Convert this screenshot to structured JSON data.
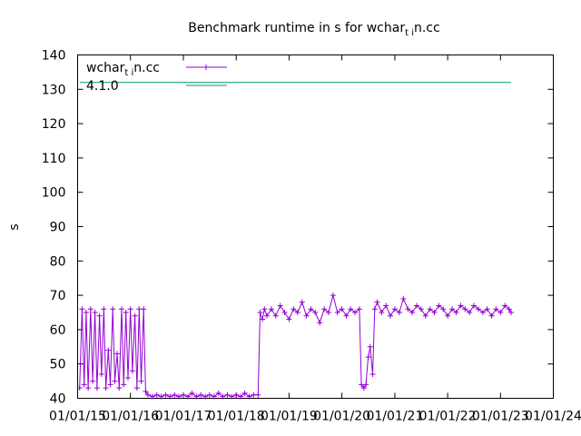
{
  "chart_data": {
    "type": "line",
    "title": {
      "before": "Benchmark runtime in s for wchar",
      "sub": "t i",
      "after": "n.cc"
    },
    "xlabel": "",
    "ylabel": "s",
    "ylim": [
      40,
      140
    ],
    "yticks": [
      40,
      50,
      60,
      70,
      80,
      90,
      100,
      110,
      120,
      130,
      140
    ],
    "xlim": [
      "2015-01-01",
      "2024-01-01"
    ],
    "xticks": [
      "01/01/15",
      "01/01/16",
      "01/01/17",
      "01/01/18",
      "01/01/19",
      "01/01/20",
      "01/01/21",
      "01/01/22",
      "01/01/23",
      "01/01/24"
    ],
    "grid": false,
    "legend_position": "top-left",
    "colors": {
      "series": "#9400d3",
      "reference": "#009e73",
      "frame": "#000000"
    },
    "series": [
      {
        "name": {
          "before": "wchar",
          "sub": "t i",
          "after": "n.cc"
        },
        "marker": "plus",
        "points": [
          [
            "2015-01-15",
            43
          ],
          [
            "2015-02-01",
            66
          ],
          [
            "2015-02-15",
            44
          ],
          [
            "2015-03-01",
            65
          ],
          [
            "2015-03-15",
            43
          ],
          [
            "2015-04-01",
            66
          ],
          [
            "2015-04-15",
            45
          ],
          [
            "2015-05-01",
            65
          ],
          [
            "2015-05-15",
            43
          ],
          [
            "2015-06-01",
            64
          ],
          [
            "2015-06-15",
            47
          ],
          [
            "2015-07-01",
            66
          ],
          [
            "2015-07-15",
            43
          ],
          [
            "2015-08-01",
            54
          ],
          [
            "2015-08-15",
            44
          ],
          [
            "2015-09-01",
            66
          ],
          [
            "2015-09-15",
            45
          ],
          [
            "2015-10-01",
            53
          ],
          [
            "2015-10-15",
            43
          ],
          [
            "2015-11-01",
            66
          ],
          [
            "2015-11-15",
            44
          ],
          [
            "2015-12-01",
            65
          ],
          [
            "2015-12-15",
            46
          ],
          [
            "2016-01-01",
            66
          ],
          [
            "2016-01-15",
            48
          ],
          [
            "2016-02-01",
            64
          ],
          [
            "2016-02-15",
            43
          ],
          [
            "2016-03-01",
            66
          ],
          [
            "2016-03-15",
            45
          ],
          [
            "2016-04-01",
            66
          ],
          [
            "2016-04-15",
            42
          ],
          [
            "2016-05-01",
            41
          ],
          [
            "2016-06-01",
            40.5
          ],
          [
            "2016-07-01",
            41
          ],
          [
            "2016-08-01",
            40.5
          ],
          [
            "2016-09-01",
            41
          ],
          [
            "2016-10-01",
            40.5
          ],
          [
            "2016-11-01",
            41
          ],
          [
            "2016-12-01",
            40.5
          ],
          [
            "2017-01-01",
            41
          ],
          [
            "2017-02-01",
            40.5
          ],
          [
            "2017-03-01",
            41.5
          ],
          [
            "2017-04-01",
            40.5
          ],
          [
            "2017-05-01",
            41
          ],
          [
            "2017-06-01",
            40.5
          ],
          [
            "2017-07-01",
            41
          ],
          [
            "2017-08-01",
            40.5
          ],
          [
            "2017-09-01",
            41.5
          ],
          [
            "2017-10-01",
            40.5
          ],
          [
            "2017-11-01",
            41
          ],
          [
            "2017-12-01",
            40.5
          ],
          [
            "2018-01-01",
            41
          ],
          [
            "2018-02-01",
            40.5
          ],
          [
            "2018-03-01",
            41.5
          ],
          [
            "2018-04-01",
            40.5
          ],
          [
            "2018-05-01",
            41
          ],
          [
            "2018-06-01",
            41
          ],
          [
            "2018-06-15",
            65
          ],
          [
            "2018-07-01",
            63
          ],
          [
            "2018-07-15",
            66
          ],
          [
            "2018-08-01",
            64
          ],
          [
            "2018-09-01",
            66
          ],
          [
            "2018-10-01",
            64
          ],
          [
            "2018-11-01",
            67
          ],
          [
            "2018-12-01",
            65
          ],
          [
            "2019-01-01",
            63
          ],
          [
            "2019-02-01",
            66
          ],
          [
            "2019-03-01",
            65
          ],
          [
            "2019-04-01",
            68
          ],
          [
            "2019-05-01",
            64
          ],
          [
            "2019-06-01",
            66
          ],
          [
            "2019-07-01",
            65
          ],
          [
            "2019-08-01",
            62
          ],
          [
            "2019-09-01",
            66
          ],
          [
            "2019-10-01",
            65
          ],
          [
            "2019-11-01",
            70
          ],
          [
            "2019-12-01",
            65
          ],
          [
            "2020-01-01",
            66
          ],
          [
            "2020-02-01",
            64
          ],
          [
            "2020-03-01",
            66
          ],
          [
            "2020-04-01",
            65
          ],
          [
            "2020-05-01",
            66
          ],
          [
            "2020-05-15",
            44
          ],
          [
            "2020-06-01",
            43
          ],
          [
            "2020-06-15",
            44
          ],
          [
            "2020-07-01",
            52
          ],
          [
            "2020-07-15",
            55
          ],
          [
            "2020-08-01",
            47
          ],
          [
            "2020-08-15",
            66
          ],
          [
            "2020-09-01",
            68
          ],
          [
            "2020-10-01",
            65
          ],
          [
            "2020-11-01",
            67
          ],
          [
            "2020-12-01",
            64
          ],
          [
            "2021-01-01",
            66
          ],
          [
            "2021-02-01",
            65
          ],
          [
            "2021-03-01",
            69
          ],
          [
            "2021-04-01",
            66
          ],
          [
            "2021-05-01",
            65
          ],
          [
            "2021-06-01",
            67
          ],
          [
            "2021-07-01",
            66
          ],
          [
            "2021-08-01",
            64
          ],
          [
            "2021-09-01",
            66
          ],
          [
            "2021-10-01",
            65
          ],
          [
            "2021-11-01",
            67
          ],
          [
            "2021-12-01",
            66
          ],
          [
            "2022-01-01",
            64
          ],
          [
            "2022-02-01",
            66
          ],
          [
            "2022-03-01",
            65
          ],
          [
            "2022-04-01",
            67
          ],
          [
            "2022-05-01",
            66
          ],
          [
            "2022-06-01",
            65
          ],
          [
            "2022-07-01",
            67
          ],
          [
            "2022-08-01",
            66
          ],
          [
            "2022-09-01",
            65
          ],
          [
            "2022-10-01",
            66
          ],
          [
            "2022-11-01",
            64
          ],
          [
            "2022-12-01",
            66
          ],
          [
            "2023-01-01",
            65
          ],
          [
            "2023-02-01",
            67
          ],
          [
            "2023-03-01",
            66
          ],
          [
            "2023-03-15",
            65
          ]
        ]
      },
      {
        "name": "4.1.0",
        "type": "horizontal-reference",
        "value": 132
      }
    ]
  }
}
